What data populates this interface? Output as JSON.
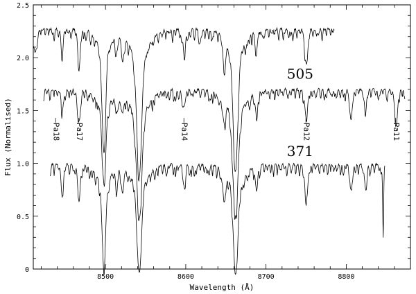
{
  "chart_data": {
    "type": "line",
    "title": "",
    "xlabel": "Wavelength (Å)",
    "ylabel": "Flux (Normalised)",
    "xlim": [
      8410,
      8880
    ],
    "ylim": [
      0,
      2.5
    ],
    "xticks": [
      8500,
      8600,
      8700,
      8800
    ],
    "yticks": [
      0,
      0.5,
      1.0,
      1.5,
      2.0,
      2.5
    ],
    "ytick_labels": [
      "0",
      "0.5",
      "1.0",
      "1.5",
      "2.0",
      "2.5"
    ],
    "grid": false,
    "series": [
      {
        "name": "",
        "x_range": [
          8410,
          8785
        ],
        "continuum": 2.27,
        "lines": [
          [
            8413,
            0.15,
            2
          ],
          [
            8446,
            0.25,
            1.2
          ],
          [
            8467,
            0.35,
            1.5
          ],
          [
            8498,
            0.95,
            2.2
          ],
          [
            8514,
            0.15,
            1.4
          ],
          [
            8521,
            0.2,
            1.6
          ],
          [
            8542,
            1.15,
            3.0
          ],
          [
            8598,
            0.2,
            1.5
          ],
          [
            8618,
            0.1,
            1.3
          ],
          [
            8648,
            0.28,
            1.6
          ],
          [
            8662,
            1.1,
            2.8
          ],
          [
            8688,
            0.2,
            1.5
          ],
          [
            8750,
            0.3,
            1.8
          ]
        ]
      },
      {
        "name": "505",
        "x_range": [
          8423,
          8873
        ],
        "continuum": 1.7,
        "lines": [
          [
            8446,
            0.18,
            1.2
          ],
          [
            8467,
            0.3,
            1.6
          ],
          [
            8498,
            0.7,
            2.4
          ],
          [
            8514,
            0.15,
            1.4
          ],
          [
            8521,
            0.16,
            1.6
          ],
          [
            8542,
            1.0,
            3.2
          ],
          [
            8598,
            0.15,
            1.5
          ],
          [
            8648,
            0.2,
            1.6
          ],
          [
            8662,
            0.98,
            3.2
          ],
          [
            8688,
            0.18,
            1.5
          ],
          [
            8750,
            0.25,
            1.8
          ],
          [
            8806,
            0.28,
            1.6
          ],
          [
            8824,
            0.18,
            1.5
          ],
          [
            8862,
            0.32,
            1.8
          ]
        ]
      },
      {
        "name": "371",
        "x_range": [
          8431,
          8848
        ],
        "continuum": 0.99,
        "lines": [
          [
            8446,
            0.3,
            1.3
          ],
          [
            8467,
            0.35,
            1.5
          ],
          [
            8498,
            0.8,
            2.2
          ],
          [
            8514,
            0.2,
            1.4
          ],
          [
            8521,
            0.22,
            1.6
          ],
          [
            8542,
            0.84,
            2.8
          ],
          [
            8598,
            0.18,
            1.5
          ],
          [
            8648,
            0.28,
            1.6
          ],
          [
            8662,
            0.82,
            2.8
          ],
          [
            8688,
            0.2,
            1.5
          ],
          [
            8750,
            0.28,
            1.8
          ],
          [
            8806,
            0.25,
            1.6
          ],
          [
            8824,
            0.2,
            1.5
          ],
          [
            8846,
            0.6,
            0.6
          ]
        ]
      }
    ],
    "spectrum_labels": [
      "505",
      "371"
    ],
    "line_ids": [
      {
        "label": "Pa18",
        "wavelength": 8438
      },
      {
        "label": "Pa17",
        "wavelength": 8467
      },
      {
        "label": "Pa14",
        "wavelength": 8598
      },
      {
        "label": "Pa12",
        "wavelength": 8750
      },
      {
        "label": "Pa11",
        "wavelength": 8862
      }
    ]
  }
}
